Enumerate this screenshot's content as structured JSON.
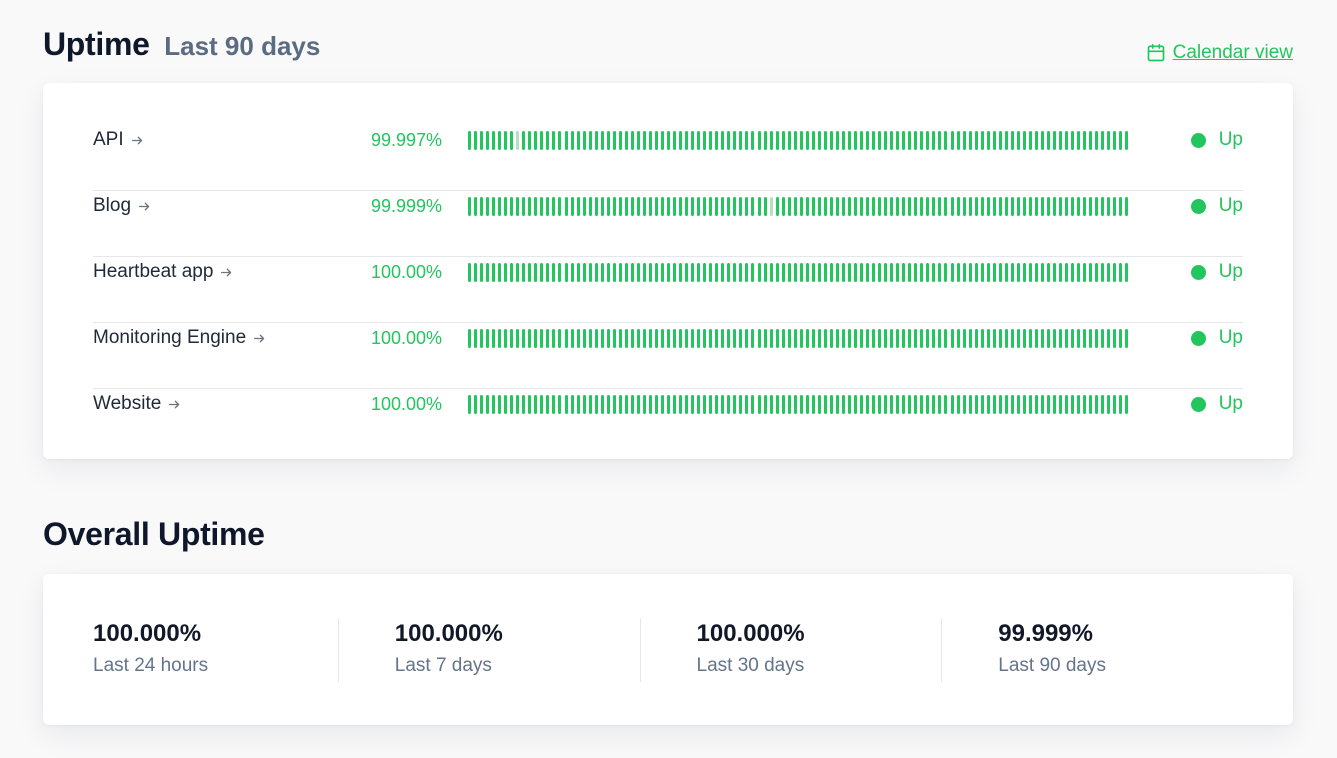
{
  "uptime": {
    "title": "Uptime",
    "subtitle": "Last 90 days",
    "calendar_link": "Calendar view",
    "services": [
      {
        "name": "API",
        "percent": "99.997%",
        "status": "Up",
        "partial_bars": [
          8
        ]
      },
      {
        "name": "Blog",
        "percent": "99.999%",
        "status": "Up",
        "partial_bars": [
          50
        ]
      },
      {
        "name": "Heartbeat app",
        "percent": "100.00%",
        "status": "Up",
        "partial_bars": []
      },
      {
        "name": "Monitoring Engine",
        "percent": "100.00%",
        "status": "Up",
        "partial_bars": []
      },
      {
        "name": "Website",
        "percent": "100.00%",
        "status": "Up",
        "partial_bars": []
      }
    ],
    "bar_count": 110
  },
  "overall": {
    "title": "Overall Uptime",
    "stats": [
      {
        "value": "100.000%",
        "label": "Last 24 hours"
      },
      {
        "value": "100.000%",
        "label": "Last 7 days"
      },
      {
        "value": "100.000%",
        "label": "Last 30 days"
      },
      {
        "value": "99.999%",
        "label": "Last 90 days"
      }
    ]
  },
  "colors": {
    "accent_green": "#22c55e",
    "partial_bar": "#b9dcc5",
    "muted_text": "#64748b"
  },
  "icons": {
    "calendar": "calendar-icon",
    "arrow": "arrow-right-icon",
    "status": "status-dot-icon"
  }
}
